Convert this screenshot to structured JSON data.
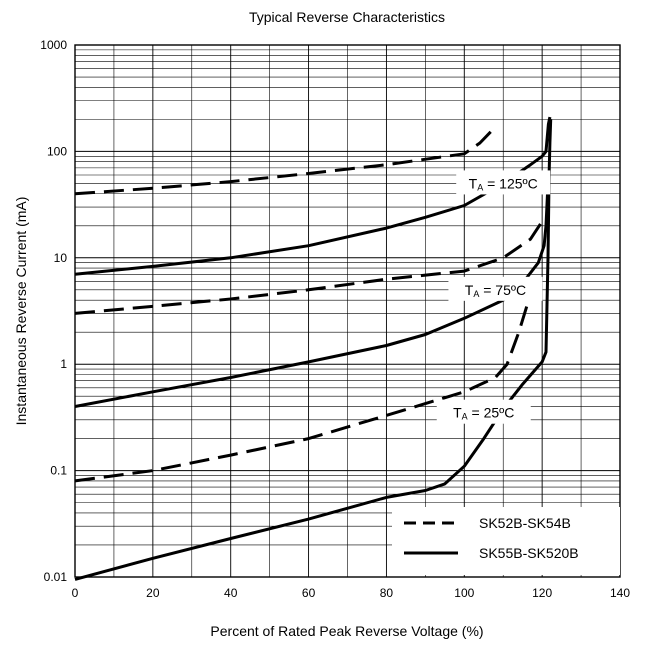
{
  "chart_data": {
    "type": "line",
    "title": "Typical Reverse Characteristics",
    "xlabel": "Percent of Rated Peak Reverse Voltage (%)",
    "ylabel": "Instantaneous Reverse Current (mA)",
    "xlim": [
      0,
      140
    ],
    "ylim": [
      0.01,
      1000
    ],
    "y_scale": "log",
    "grid": true,
    "x_ticks": [
      "0",
      "20",
      "40",
      "60",
      "80",
      "100",
      "120",
      "140"
    ],
    "y_ticks": [
      "0.01",
      "0.1",
      "1",
      "10",
      "100",
      "1000"
    ],
    "legend": {
      "placement": "bottom-right",
      "entries": [
        {
          "label": "SK52B-SK54B",
          "style": "dashed"
        },
        {
          "label": "SK55B-SK520B",
          "style": "solid"
        }
      ]
    },
    "annotations": [
      {
        "main": "T",
        "sub": "A",
        "rest": " = 125ºC",
        "x": 110,
        "y": 50
      },
      {
        "main": "T",
        "sub": "A",
        "rest": " = 75ºC",
        "x": 108,
        "y": 5
      },
      {
        "main": "T",
        "sub": "A",
        "rest": " = 25ºC",
        "x": 105,
        "y": 0.35
      }
    ],
    "series": [
      {
        "group": "SK52B-SK54B",
        "condition": "125",
        "style": "dashed",
        "points": [
          [
            0,
            40
          ],
          [
            20,
            45
          ],
          [
            40,
            52
          ],
          [
            60,
            62
          ],
          [
            80,
            75
          ],
          [
            100,
            95
          ],
          [
            104,
            120
          ],
          [
            108,
            170
          ]
        ]
      },
      {
        "group": "SK55B-SK520B",
        "condition": "125",
        "style": "solid",
        "points": [
          [
            0,
            7
          ],
          [
            20,
            8.3
          ],
          [
            40,
            10
          ],
          [
            60,
            13
          ],
          [
            80,
            19
          ],
          [
            90,
            24
          ],
          [
            100,
            31
          ],
          [
            110,
            50
          ],
          [
            117,
            75
          ],
          [
            120,
            90
          ],
          [
            121,
            100
          ],
          [
            121.6,
            180
          ],
          [
            122,
            210
          ]
        ]
      },
      {
        "group": "SK52B-SK54B",
        "condition": "75",
        "style": "dashed",
        "points": [
          [
            0,
            3
          ],
          [
            20,
            3.5
          ],
          [
            40,
            4.1
          ],
          [
            60,
            5
          ],
          [
            80,
            6.3
          ],
          [
            100,
            7.5
          ],
          [
            110,
            10
          ],
          [
            117,
            15
          ],
          [
            120,
            22
          ]
        ]
      },
      {
        "group": "SK55B-SK520B",
        "condition": "75",
        "style": "solid",
        "points": [
          [
            0,
            0.4
          ],
          [
            20,
            0.55
          ],
          [
            40,
            0.75
          ],
          [
            60,
            1.05
          ],
          [
            80,
            1.5
          ],
          [
            90,
            1.9
          ],
          [
            100,
            2.7
          ],
          [
            110,
            4
          ],
          [
            115,
            5.8
          ],
          [
            119,
            9
          ],
          [
            120.5,
            13
          ],
          [
            121,
            20
          ],
          [
            121.5,
            50
          ]
        ]
      },
      {
        "group": "SK52B-SK54B",
        "condition": "25",
        "style": "dashed",
        "points": [
          [
            0,
            0.08
          ],
          [
            20,
            0.1
          ],
          [
            40,
            0.14
          ],
          [
            60,
            0.2
          ],
          [
            80,
            0.33
          ],
          [
            100,
            0.55
          ],
          [
            108,
            0.75
          ],
          [
            111,
            1
          ],
          [
            114,
            2
          ],
          [
            118,
            6
          ]
        ]
      },
      {
        "group": "SK55B-SK520B",
        "condition": "25",
        "style": "solid",
        "points": [
          [
            0,
            0.0095
          ],
          [
            20,
            0.015
          ],
          [
            40,
            0.023
          ],
          [
            60,
            0.035
          ],
          [
            80,
            0.056
          ],
          [
            90,
            0.065
          ],
          [
            95,
            0.075
          ],
          [
            100,
            0.11
          ],
          [
            105,
            0.2
          ],
          [
            110,
            0.38
          ],
          [
            115,
            0.65
          ],
          [
            120,
            1.05
          ],
          [
            121,
            1.3
          ],
          [
            121.5,
            10
          ],
          [
            121.8,
            60
          ],
          [
            122,
            120
          ],
          [
            122.2,
            200
          ]
        ]
      }
    ]
  }
}
